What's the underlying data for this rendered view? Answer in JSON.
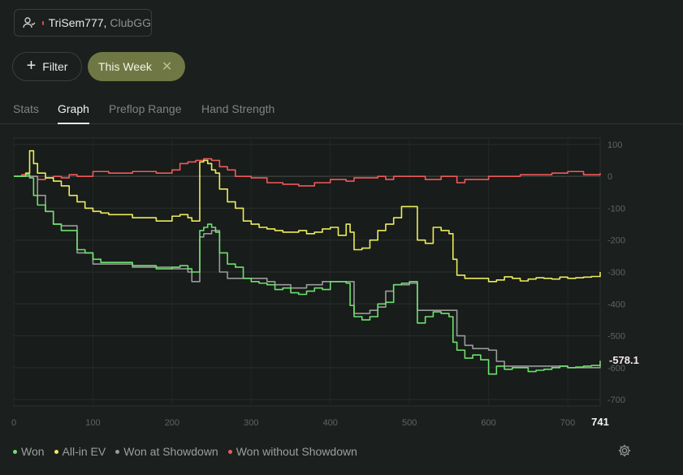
{
  "header": {
    "player_name": "TriSem777,",
    "site": "ClubGG"
  },
  "filters": {
    "filter_label": "Filter",
    "active_chip": "This Week"
  },
  "tabs": [
    {
      "label": "Stats",
      "active": false
    },
    {
      "label": "Graph",
      "active": true
    },
    {
      "label": "Preflop Range",
      "active": false
    },
    {
      "label": "Hand Strength",
      "active": false
    }
  ],
  "colors": {
    "won": "#6fe06f",
    "allin_ev": "#ecec5c",
    "showdown": "#9a9a9a",
    "non_showdown": "#f05a5a"
  },
  "chart_data": {
    "type": "line",
    "xlim": [
      0,
      741
    ],
    "ylim": [
      -720,
      120
    ],
    "x_ticks": [
      0,
      100,
      200,
      300,
      400,
      500,
      600,
      700
    ],
    "x_end_label": "741",
    "y_ticks": [
      100,
      0,
      -100,
      -200,
      -300,
      -400,
      -500,
      -600,
      -700
    ],
    "end_value_label": "-578.1",
    "grid": true,
    "legend_position": "bottom-left",
    "series": [
      {
        "name": "Won",
        "x": [
          0,
          10,
          15,
          20,
          25,
          30,
          40,
          50,
          60,
          70,
          80,
          90,
          100,
          110,
          120,
          150,
          180,
          200,
          210,
          220,
          225,
          230,
          235,
          240,
          245,
          250,
          255,
          260,
          270,
          280,
          290,
          300,
          310,
          320,
          330,
          340,
          350,
          360,
          370,
          380,
          390,
          400,
          410,
          420,
          425,
          430,
          440,
          450,
          460,
          470,
          480,
          490,
          500,
          510,
          520,
          530,
          540,
          550,
          555,
          560,
          570,
          580,
          590,
          600,
          610,
          620,
          630,
          640,
          650,
          660,
          670,
          680,
          690,
          700,
          710,
          720,
          730,
          741
        ],
        "y": [
          0,
          0,
          5,
          -5,
          -60,
          -90,
          -110,
          -150,
          -170,
          -170,
          -230,
          -240,
          -260,
          -270,
          -270,
          -280,
          -290,
          -285,
          -280,
          -290,
          -300,
          -300,
          -170,
          -160,
          -150,
          -160,
          -175,
          -240,
          -275,
          -285,
          -320,
          -330,
          -335,
          -340,
          -355,
          -350,
          -365,
          -370,
          -360,
          -350,
          -355,
          -330,
          -330,
          -335,
          -405,
          -440,
          -450,
          -440,
          -400,
          -395,
          -340,
          -335,
          -330,
          -460,
          -440,
          -425,
          -430,
          -440,
          -520,
          -545,
          -570,
          -560,
          -575,
          -620,
          -595,
          -605,
          -600,
          -600,
          -612,
          -608,
          -605,
          -600,
          -595,
          -600,
          -598,
          -595,
          -593,
          -578
        ]
      },
      {
        "name": "All-in EV",
        "x": [
          0,
          10,
          15,
          20,
          25,
          30,
          40,
          50,
          60,
          70,
          80,
          90,
          100,
          110,
          120,
          150,
          180,
          200,
          210,
          220,
          225,
          230,
          235,
          240,
          245,
          250,
          255,
          260,
          270,
          280,
          290,
          300,
          310,
          320,
          330,
          340,
          350,
          360,
          370,
          380,
          390,
          400,
          410,
          420,
          425,
          430,
          440,
          450,
          460,
          470,
          480,
          490,
          500,
          510,
          520,
          530,
          540,
          550,
          555,
          560,
          570,
          580,
          590,
          600,
          610,
          620,
          630,
          640,
          650,
          660,
          670,
          680,
          690,
          700,
          710,
          720,
          730,
          741
        ],
        "y": [
          0,
          0,
          10,
          80,
          40,
          10,
          -5,
          -15,
          -30,
          -60,
          -80,
          -100,
          -110,
          -115,
          -120,
          -130,
          -140,
          -125,
          -120,
          -130,
          -140,
          -140,
          45,
          50,
          40,
          20,
          10,
          -40,
          -80,
          -100,
          -140,
          -150,
          -160,
          -165,
          -170,
          -175,
          -175,
          -170,
          -180,
          -175,
          -165,
          -160,
          -185,
          -150,
          -175,
          -230,
          -225,
          -200,
          -170,
          -150,
          -130,
          -95,
          -95,
          -200,
          -210,
          -160,
          -170,
          -180,
          -260,
          -310,
          -320,
          -320,
          -320,
          -330,
          -325,
          -315,
          -320,
          -328,
          -322,
          -318,
          -320,
          -322,
          -316,
          -320,
          -318,
          -316,
          -314,
          -300
        ]
      },
      {
        "name": "Won at Showdown",
        "x": [
          0,
          20,
          30,
          40,
          50,
          60,
          80,
          100,
          120,
          150,
          200,
          220,
          225,
          230,
          235,
          240,
          250,
          260,
          270,
          300,
          320,
          330,
          350,
          370,
          390,
          410,
          425,
          430,
          440,
          450,
          460,
          470,
          480,
          500,
          510,
          520,
          530,
          540,
          550,
          560,
          570,
          580,
          600,
          610,
          620,
          700,
          741
        ],
        "y": [
          0,
          0,
          -60,
          -110,
          -150,
          -155,
          -240,
          -275,
          -275,
          -285,
          -290,
          -300,
          -330,
          -330,
          -190,
          -180,
          -170,
          -300,
          -320,
          -320,
          -330,
          -340,
          -350,
          -340,
          -330,
          -330,
          -330,
          -430,
          -430,
          -420,
          -410,
          -360,
          -340,
          -335,
          -420,
          -420,
          -420,
          -420,
          -420,
          -500,
          -530,
          -540,
          -545,
          -580,
          -595,
          -600,
          -590
        ]
      },
      {
        "name": "Won without Showdown",
        "x": [
          0,
          10,
          20,
          30,
          40,
          50,
          60,
          70,
          80,
          100,
          120,
          150,
          180,
          200,
          210,
          220,
          230,
          240,
          250,
          260,
          270,
          280,
          300,
          320,
          340,
          360,
          380,
          400,
          420,
          430,
          440,
          460,
          470,
          480,
          500,
          520,
          540,
          560,
          570,
          580,
          600,
          620,
          640,
          660,
          680,
          700,
          720,
          741
        ],
        "y": [
          0,
          5,
          0,
          -10,
          -5,
          0,
          -5,
          5,
          0,
          15,
          10,
          15,
          10,
          20,
          40,
          45,
          50,
          55,
          50,
          30,
          20,
          0,
          -5,
          -20,
          -25,
          -30,
          -20,
          -10,
          -15,
          -5,
          -5,
          0,
          -10,
          0,
          0,
          -10,
          0,
          -20,
          -10,
          -10,
          0,
          0,
          5,
          5,
          10,
          15,
          5,
          10
        ]
      }
    ]
  }
}
